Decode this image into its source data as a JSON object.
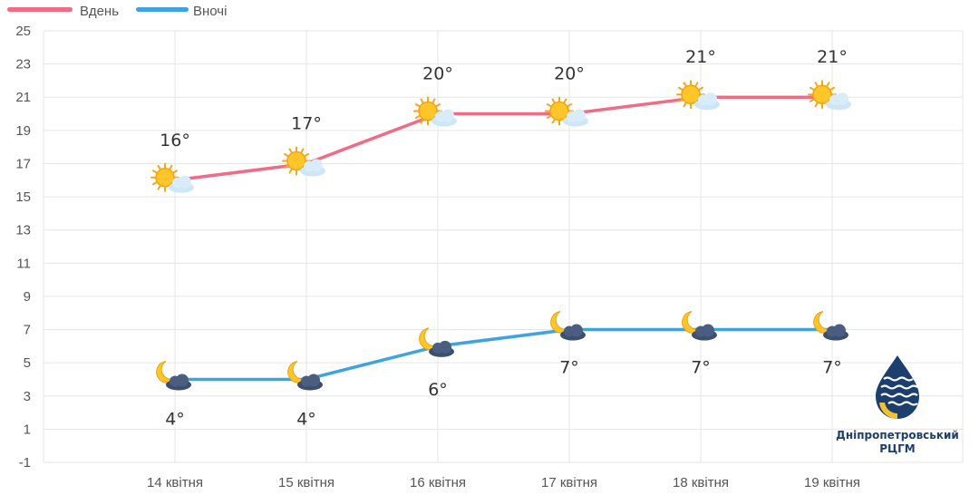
{
  "legend": {
    "day": {
      "label": "Вдень",
      "color": "#f06b85"
    },
    "night": {
      "label": "Вночі",
      "color": "#3fa3e0"
    }
  },
  "logo": {
    "line1": "Дніпропетровський",
    "line2": "РЦГМ",
    "colors": {
      "navy": "#1d3f6e",
      "yellow": "#f2c230"
    }
  },
  "chart_data": {
    "type": "line",
    "categories": [
      "14 квітня",
      "15 квітня",
      "16 квітня",
      "17 квітня",
      "18 квітня",
      "19 квітня"
    ],
    "series": [
      {
        "name": "Вдень",
        "color": "#f06b85",
        "values": [
          16,
          17,
          20,
          20,
          21,
          21
        ],
        "labels": [
          "16°",
          "17°",
          "20°",
          "20°",
          "21°",
          "21°"
        ],
        "icons": [
          "sun-cloud-icon",
          "sun-cloud-icon",
          "sun-cloud-icon",
          "sun-cloud-icon",
          "sun-cloud-icon",
          "sun-cloud-icon"
        ]
      },
      {
        "name": "Вночі",
        "color": "#3fa3e0",
        "values": [
          4,
          4,
          6,
          7,
          7,
          7
        ],
        "labels": [
          "4°",
          "4°",
          "6°",
          "7°",
          "7°",
          "7°"
        ],
        "icons": [
          "moon-cloud-icon",
          "moon-cloud-icon",
          "moon-cloud-icon",
          "moon-cloud-icon",
          "moon-cloud-icon",
          "moon-cloud-icon"
        ]
      }
    ],
    "yticks": [
      "-1",
      "1",
      "3",
      "5",
      "7",
      "9",
      "11",
      "13",
      "15",
      "17",
      "19",
      "21",
      "23",
      "25"
    ],
    "ylim": [
      -1,
      25
    ],
    "grid": true,
    "legend_position": "top-left",
    "xlabel": "",
    "ylabel": ""
  }
}
